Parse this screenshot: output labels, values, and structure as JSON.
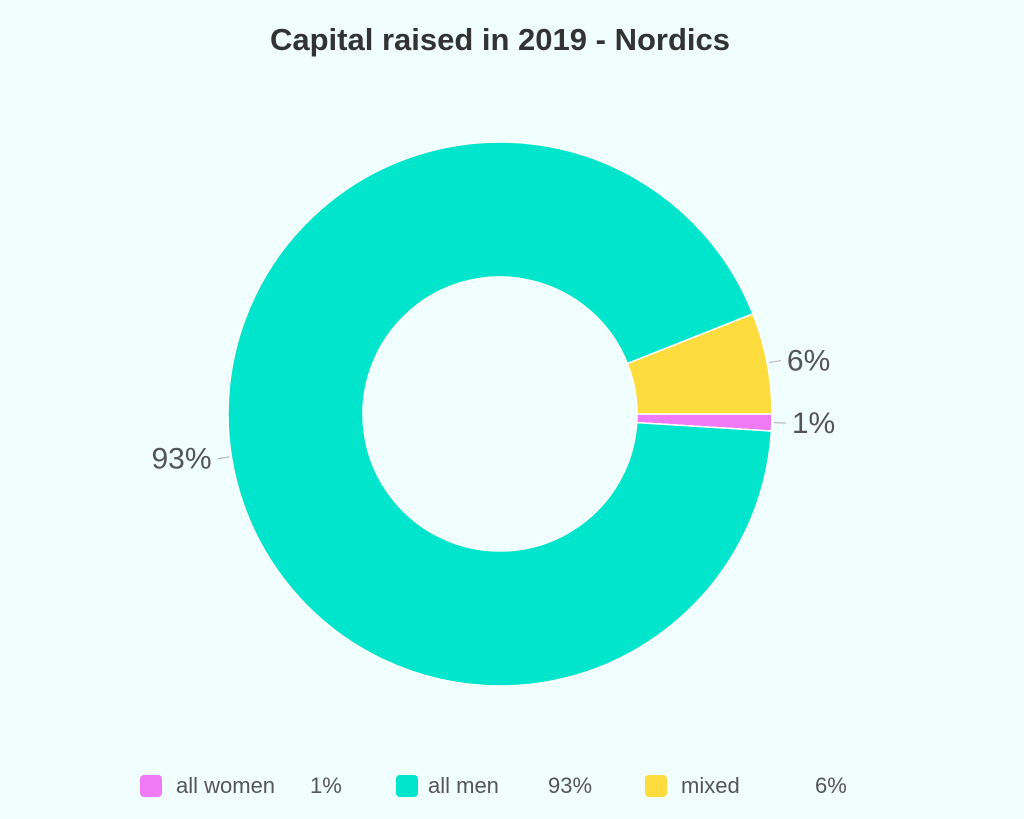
{
  "chart_data": {
    "type": "pie",
    "title": "Capital raised in 2019 - Nordics",
    "donut": true,
    "slices": [
      {
        "name": "all women",
        "value": 1,
        "label": "1%",
        "color": "#ee7af5"
      },
      {
        "name": "all men",
        "value": 93,
        "label": "93%",
        "color": "#00e5cc"
      },
      {
        "name": "mixed",
        "value": 6,
        "label": "6%",
        "color": "#fddc3e"
      }
    ],
    "legend": {
      "position": "bottom",
      "items": [
        {
          "name": "all women",
          "value": "1%",
          "color": "#ee7af5"
        },
        {
          "name": "all men",
          "value": "93%",
          "color": "#00e5cc"
        },
        {
          "name": "mixed",
          "value": "6%",
          "color": "#fddc3e"
        }
      ]
    }
  }
}
